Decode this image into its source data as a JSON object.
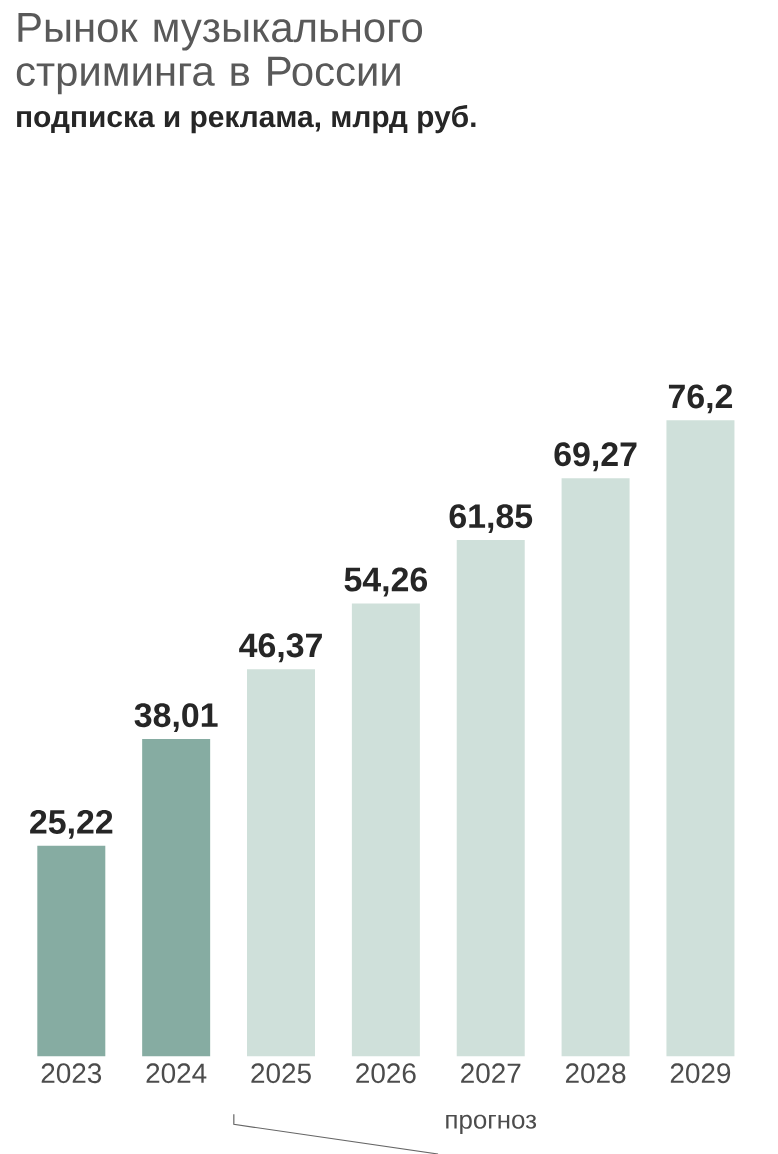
{
  "chart_data": {
    "type": "bar",
    "title": "Рынок музыкального стриминга в России",
    "subtitle": "подписка и реклама, млрд руб.",
    "categories": [
      "2023",
      "2024",
      "2025",
      "2026",
      "2027",
      "2028",
      "2029"
    ],
    "values": [
      25.22,
      38.01,
      46.37,
      54.26,
      61.85,
      69.27,
      76.2
    ],
    "colors": [
      "#86aca2",
      "#86aca2",
      "#cfe0da",
      "#cfe0da",
      "#cfe0da",
      "#cfe0da",
      "#cfe0da"
    ],
    "value_labels": [
      "25,22",
      "38,01",
      "46,37",
      "54,26",
      "61,85",
      "69,27",
      "76,2"
    ],
    "annotations": [
      "прогноз"
    ]
  }
}
